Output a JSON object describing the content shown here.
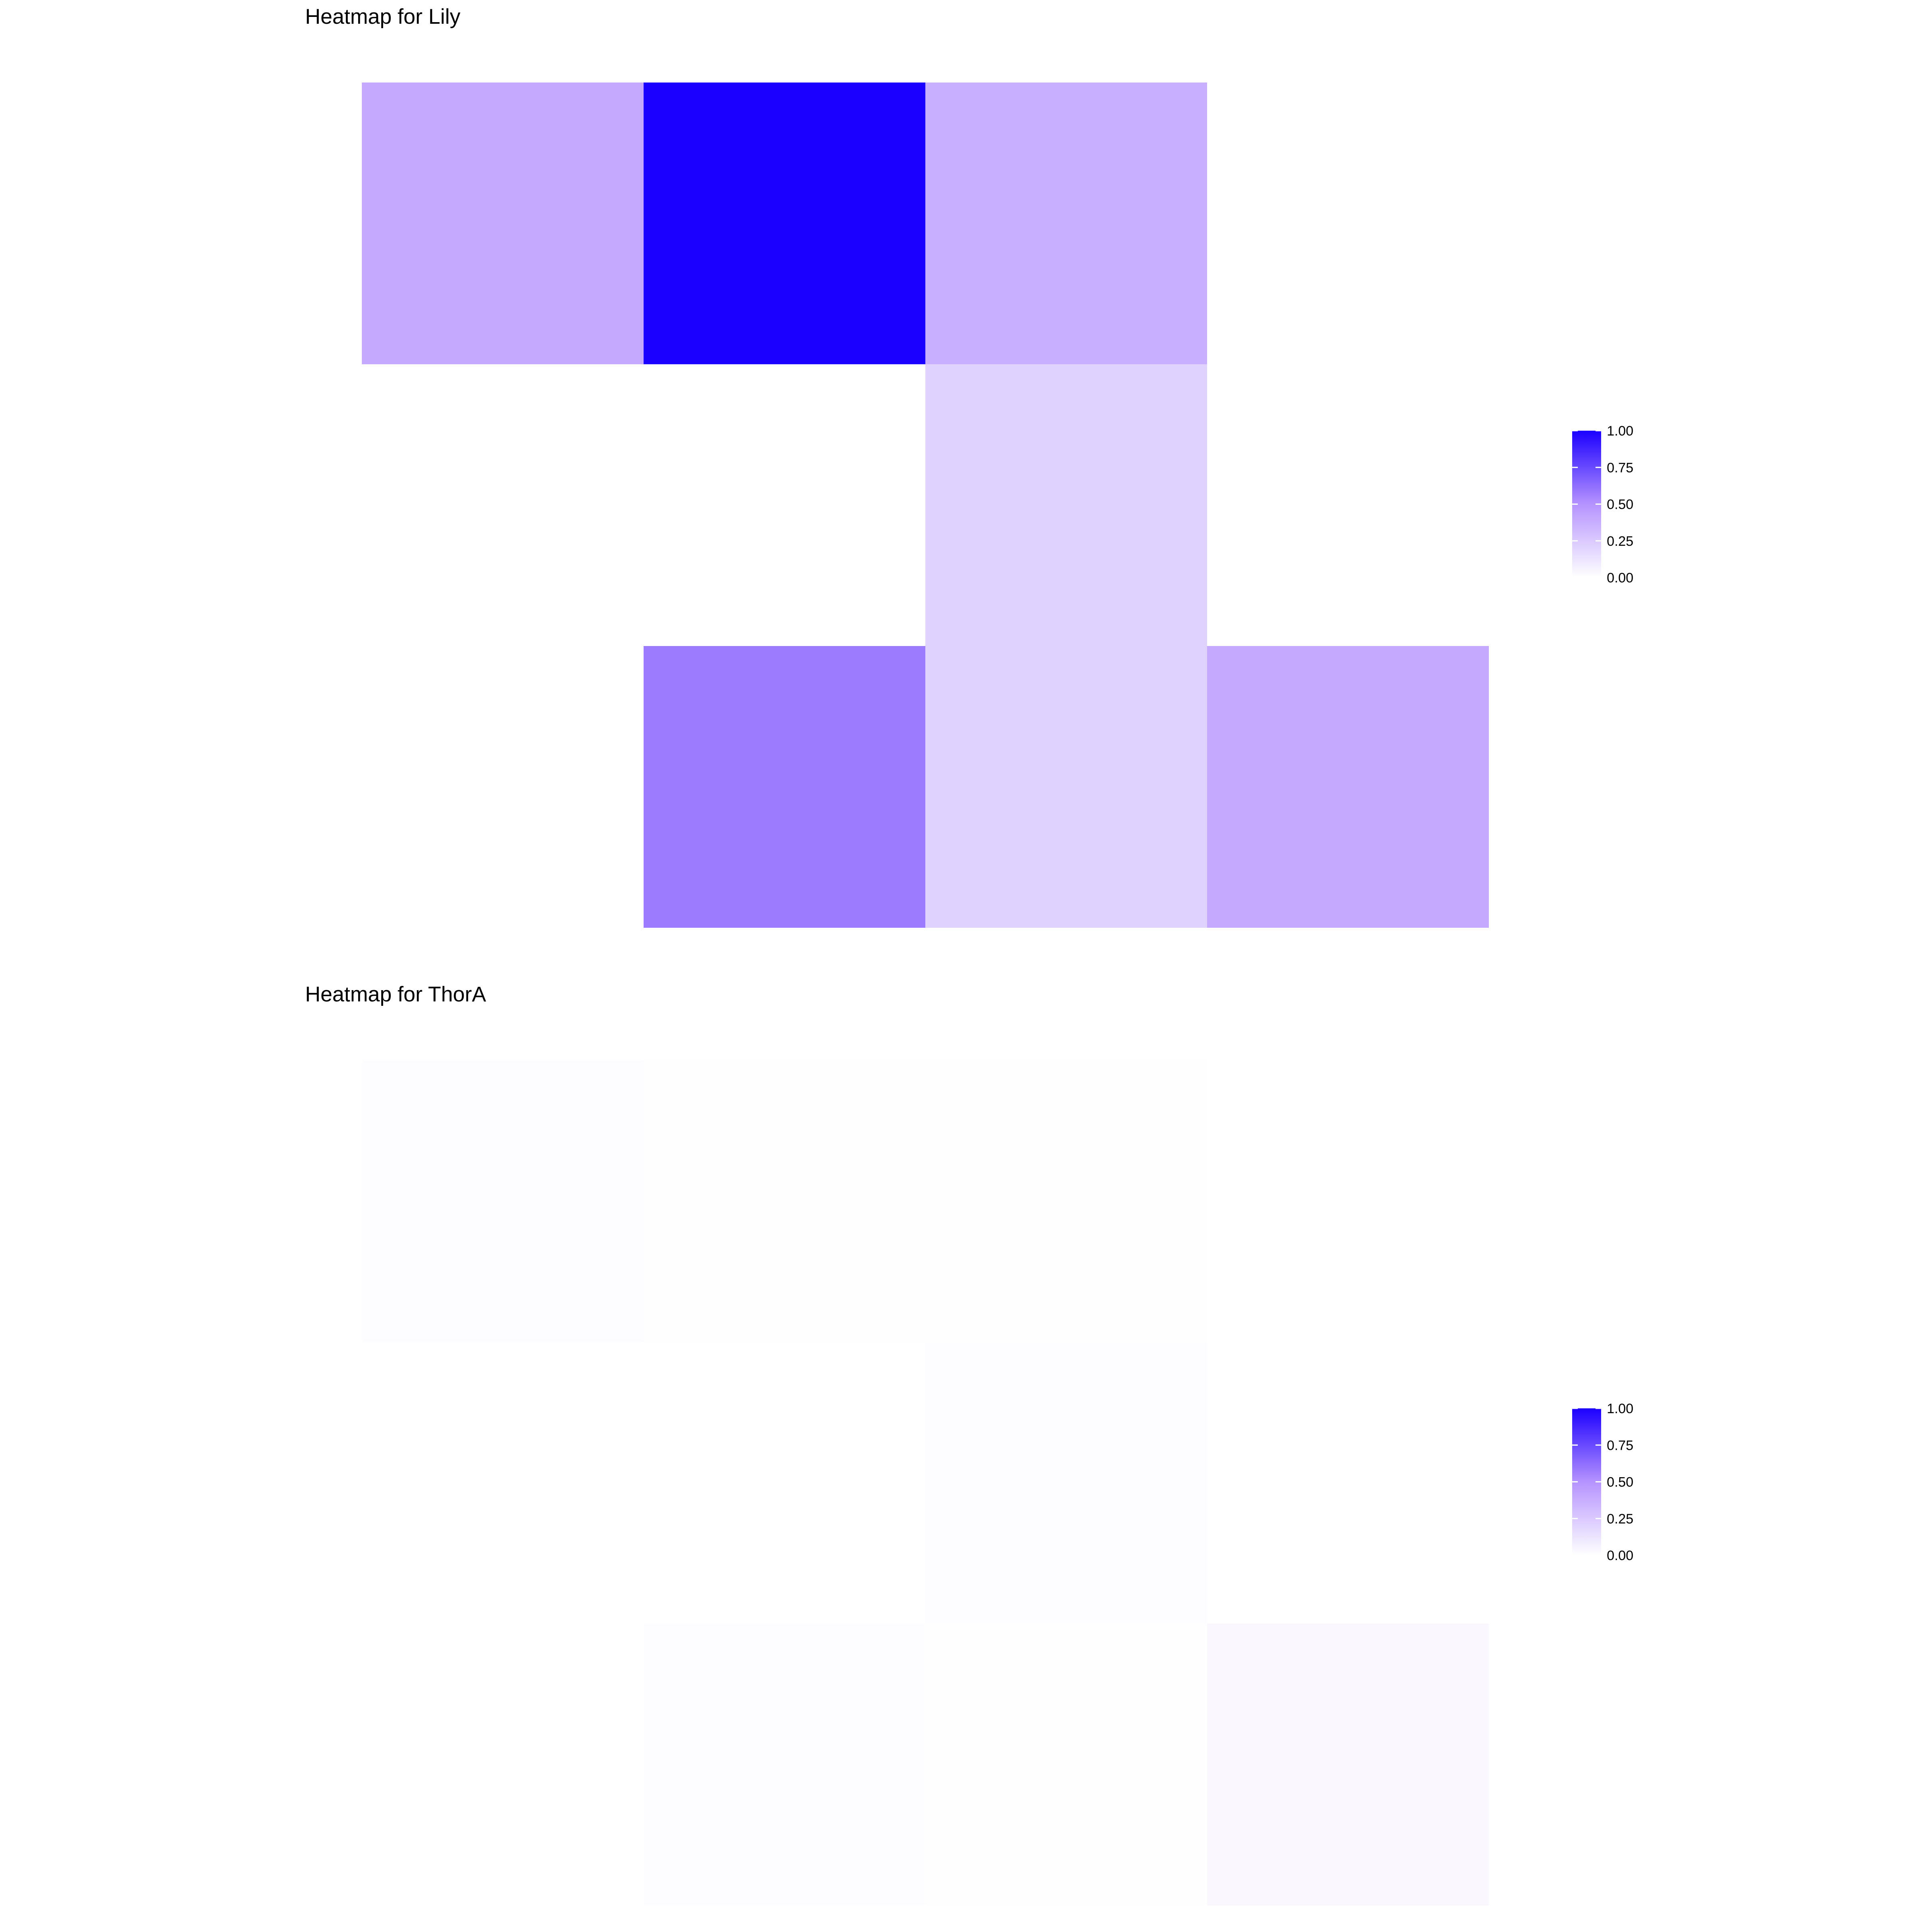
{
  "chart_data": [
    {
      "type": "heatmap",
      "title": "Heatmap for Lily",
      "xlabel": "",
      "ylabel": "",
      "rows": 3,
      "cols": 4,
      "cells": [
        {
          "row": 0,
          "col": 0,
          "value": 0.4
        },
        {
          "row": 0,
          "col": 1,
          "value": 1.0
        },
        {
          "row": 0,
          "col": 2,
          "value": 0.37
        },
        {
          "row": 1,
          "col": 2,
          "value": 0.21
        },
        {
          "row": 2,
          "col": 1,
          "value": 0.58
        },
        {
          "row": 2,
          "col": 2,
          "value": 0.21
        },
        {
          "row": 2,
          "col": 3,
          "value": 0.4
        }
      ],
      "legend": {
        "position": "right",
        "ticks": [
          "1.00",
          "0.75",
          "0.50",
          "0.25",
          "0.00"
        ],
        "range": [
          0,
          1
        ]
      },
      "color_low": "#ffffff",
      "color_high": "#1c00ff",
      "grid": false
    },
    {
      "type": "heatmap",
      "title": "Heatmap for ThorA",
      "xlabel": "",
      "ylabel": "",
      "rows": 3,
      "cols": 4,
      "cells": [
        {
          "row": 0,
          "col": 0,
          "value": 0.012
        },
        {
          "row": 0,
          "col": 1,
          "value": 0.006
        },
        {
          "row": 0,
          "col": 2,
          "value": 0.008
        },
        {
          "row": 1,
          "col": 2,
          "value": 0.013
        },
        {
          "row": 2,
          "col": 1,
          "value": 0.012
        },
        {
          "row": 2,
          "col": 2,
          "value": 0.009
        },
        {
          "row": 2,
          "col": 3,
          "value": 0.036
        }
      ],
      "legend": {
        "position": "right",
        "ticks": [
          "1.00",
          "0.75",
          "0.50",
          "0.25",
          "0.00"
        ],
        "range": [
          0,
          1
        ]
      },
      "color_low": "#ffffff",
      "color_high": "#1c00ff",
      "grid": false
    }
  ]
}
